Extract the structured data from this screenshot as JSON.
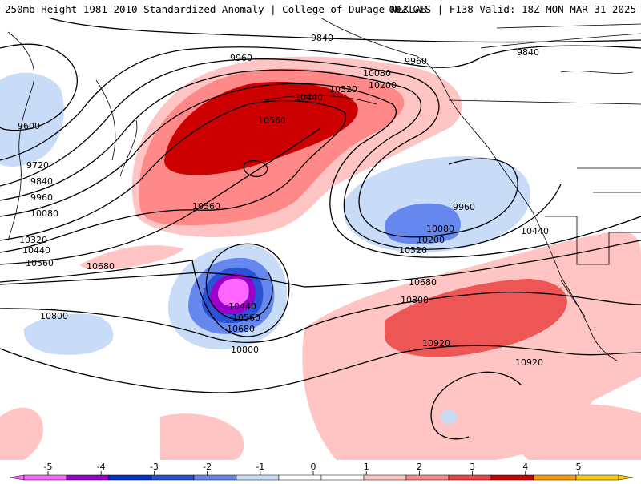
{
  "header": {
    "title": "250mb Height 1981-2010 Standardized Anomaly | College of DuPage NEXLAB",
    "run_info": "00Z GFS | F138 Valid: 18Z MON MAR 31 2025"
  },
  "contour_labels": [
    "9840",
    "9960",
    "9840",
    "10080",
    "9960",
    "10200",
    "10320",
    "10440",
    "9600",
    "10560",
    "9720",
    "9840",
    "9960",
    "10080",
    "9960",
    "10560",
    "10080",
    "10200",
    "10440",
    "10320",
    "10320",
    "10440",
    "10560",
    "10680",
    "10680",
    "10440",
    "10800",
    "10560",
    "10680",
    "10800",
    "10920",
    "10800",
    "10920"
  ],
  "colorbar": {
    "labels": [
      "-5",
      "-4",
      "-3",
      "-2",
      "-1",
      "0",
      "1",
      "2",
      "3",
      "4",
      "5"
    ],
    "colors": [
      "#ff66ff",
      "#9900cc",
      "#0033cc",
      "#2a52d6",
      "#6688ee",
      "#c8dcf8",
      "#ffffff",
      "#ffffff",
      "#ffc4c4",
      "#ff8888",
      "#ee4444",
      "#cc0000",
      "#ff9900",
      "#ffcc00"
    ]
  }
}
